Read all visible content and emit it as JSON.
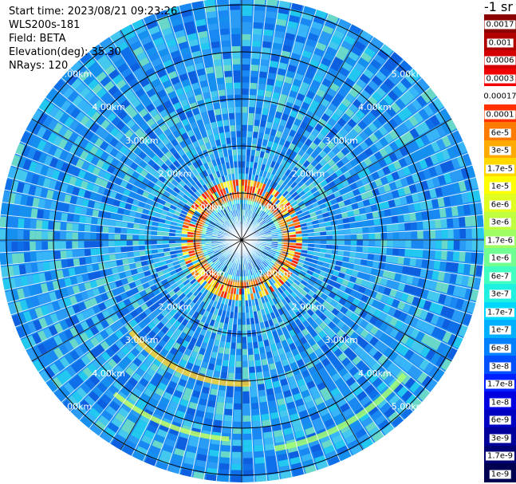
{
  "header": {
    "start_time": "Start time: 2023/08/21 09:23:26",
    "device": "WLS200s-181",
    "field": "Field: BETA",
    "elevation": "Elevation(deg): 35.30",
    "nrays": "NRays: 120"
  },
  "colorbar": {
    "unit_title": "-1 sr",
    "labels": [
      "0.0017",
      "0.001",
      "0.0006",
      "0.0003",
      "0.00017",
      "0.0001",
      "6e-5",
      "3e-5",
      "1.7e-5",
      "1e-5",
      "6e-6",
      "3e-6",
      "1.7e-6",
      "1e-6",
      "6e-7",
      "3e-7",
      "1.7e-7",
      "1e-7",
      "6e-8",
      "3e-8",
      "1.7e-8",
      "1e-8",
      "6e-9",
      "3e-9",
      "1.7e-9",
      "1e-9"
    ],
    "colors": [
      "#8b0000",
      "#b00000",
      "#d40000",
      "#f00000",
      "#ffffff",
      "#ff3000",
      "#ff7a00",
      "#ffaa00",
      "#ffd800",
      "#ffff00",
      "#e0ff20",
      "#c0ff40",
      "#a0ff60",
      "#70ff90",
      "#40ffc0",
      "#20f0e0",
      "#00d8ff",
      "#00b0ff",
      "#0080ff",
      "#0050ff",
      "#0020ff",
      "#0000e0",
      "#0000c0",
      "#00009a",
      "#000075",
      "#000050"
    ]
  },
  "range_rings": {
    "labels": [
      "1.00km",
      "2.00km",
      "3.00km",
      "4.00km",
      "5.00km"
    ]
  },
  "colors": {
    "background_field": "#1f8ff5",
    "grid": "#000000",
    "ring_label": "#ffffff"
  }
}
